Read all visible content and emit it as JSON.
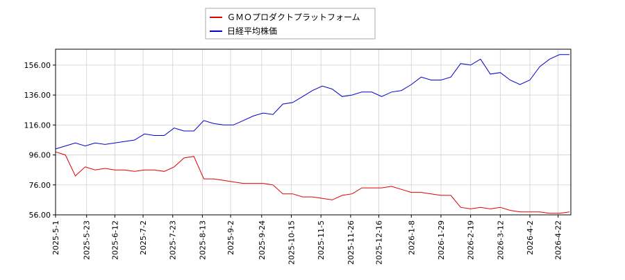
{
  "chart_data": {
    "type": "line",
    "x": [
      "2025-5-1",
      "2025-5-8",
      "2025-5-15",
      "2025-5-22",
      "2025-5-29",
      "2025-6-5",
      "2025-6-12",
      "2025-6-19",
      "2025-6-26",
      "2025-7-3",
      "2025-7-10",
      "2025-7-17",
      "2025-7-24",
      "2025-7-31",
      "2025-8-7",
      "2025-8-14",
      "2025-8-21",
      "2025-8-28",
      "2025-9-4",
      "2025-9-11",
      "2025-9-18",
      "2025-9-25",
      "2025-10-2",
      "2025-10-9",
      "2025-10-16",
      "2025-10-23",
      "2025-10-30",
      "2025-11-6",
      "2025-11-13",
      "2025-11-20",
      "2025-11-27",
      "2025-12-4",
      "2025-12-11",
      "2025-12-18",
      "2025-12-25",
      "2026-1-1",
      "2026-1-8",
      "2026-1-15",
      "2026-1-22",
      "2026-1-29",
      "2026-2-5",
      "2026-2-12",
      "2026-2-19",
      "2026-2-26",
      "2026-3-5",
      "2026-3-12",
      "2026-3-19",
      "2026-3-26",
      "2026-4-2",
      "2026-4-9",
      "2026-4-16",
      "2026-4-23",
      "2026-4-30"
    ],
    "series": [
      {
        "name": "ＧＭＯプロダクトプラットフォーム",
        "color": "#dd0000",
        "values": [
          98,
          96,
          82,
          88,
          86,
          87,
          86,
          86,
          85,
          86,
          86,
          85,
          88,
          94,
          95,
          80,
          80,
          79,
          78,
          77,
          77,
          77,
          76,
          70,
          70,
          68,
          68,
          67,
          66,
          69,
          70,
          74,
          74,
          74,
          75,
          73,
          71,
          71,
          70,
          69,
          69,
          61,
          60,
          61,
          60,
          61,
          59,
          58,
          58,
          58,
          57,
          57,
          58
        ]
      },
      {
        "name": "日経平均株価",
        "color": "#0000cc",
        "values": [
          100,
          102,
          104,
          102,
          104,
          103,
          104,
          105,
          106,
          110,
          109,
          109,
          114,
          112,
          112,
          119,
          117,
          116,
          116,
          119,
          122,
          124,
          123,
          130,
          131,
          135,
          139,
          142,
          140,
          135,
          136,
          138,
          138,
          135,
          138,
          139,
          143,
          148,
          146,
          146,
          148,
          157,
          156,
          160,
          150,
          151,
          146,
          143,
          146,
          155,
          160,
          163,
          163
        ]
      }
    ],
    "xlim": [
      "2025-5-1",
      "2026-5-1"
    ],
    "xticks": [
      "2025-5-1",
      "2025-5-23",
      "2025-6-12",
      "2025-7-2",
      "2025-7-23",
      "2025-8-13",
      "2025-9-2",
      "2025-9-24",
      "2025-10-15",
      "2025-11-5",
      "2025-11-26",
      "2025-12-16",
      "2026-1-8",
      "2026-1-29",
      "2026-2-19",
      "2026-3-12",
      "2026-4-2",
      "2026-4-22"
    ],
    "ylim": [
      56,
      166.6
    ],
    "yticks": [
      {
        "value": 56,
        "label": "56.00"
      },
      {
        "value": 76,
        "label": "76.00"
      },
      {
        "value": 96,
        "label": "96.00"
      },
      {
        "value": 116,
        "label": "116.00"
      },
      {
        "value": 136,
        "label": "136.00"
      },
      {
        "value": 156,
        "label": "156.00"
      }
    ],
    "grid": true,
    "legend": "top"
  }
}
